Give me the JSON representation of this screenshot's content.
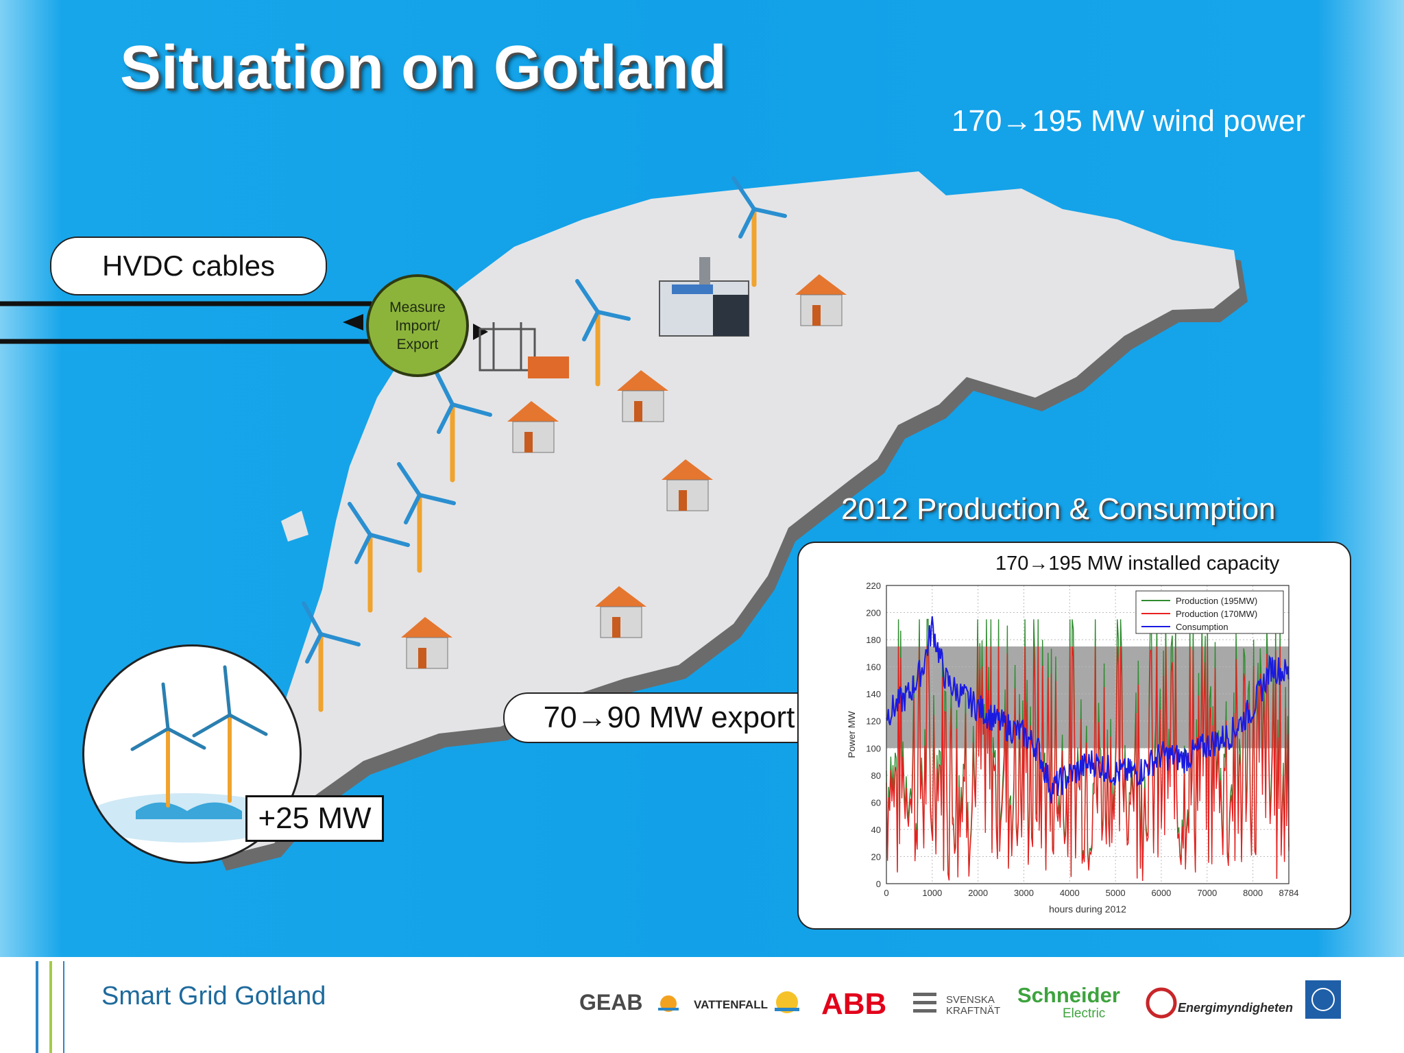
{
  "slide": {
    "title": "Situation on Gotland",
    "wind_power": "170→195 MW wind power",
    "hvdc_label": "HVDC cables",
    "measure_label": [
      "Measure",
      "Import/",
      "Export"
    ],
    "offshore_label": "+25 MW",
    "export_label": "70→90 MW export",
    "chart_heading": "2012 Production & Consumption",
    "chart_subtitle": "170→195 MW installed capacity"
  },
  "colors": {
    "sea": "#12a1e8",
    "land": "#e4e4e6",
    "measure_fill": "#8cb43b",
    "shade_band": "#a8a8a8"
  },
  "chart_data": {
    "type": "line",
    "xlabel": "hours during 2012",
    "ylabel": "Power MW",
    "xlim": [
      0,
      8784
    ],
    "ylim": [
      0,
      220
    ],
    "x_ticks": [
      "0",
      "1000",
      "2000",
      "3000",
      "4000",
      "5000",
      "6000",
      "7000",
      "8000",
      "8784"
    ],
    "y_ticks": [
      "0",
      "20",
      "40",
      "60",
      "80",
      "100",
      "120",
      "140",
      "160",
      "180",
      "200",
      "220"
    ],
    "shaded_band": [
      100,
      175
    ],
    "legend": "top-right",
    "series": [
      {
        "name": "Production (195MW)",
        "color": "#2e8b2e"
      },
      {
        "name": "Production (170MW)",
        "color": "#e82020"
      },
      {
        "name": "Consumption",
        "color": "#1a1ae0",
        "x": [
          0,
          500,
          800,
          1000,
          1300,
          1600,
          2000,
          2500,
          3000,
          3300,
          3600,
          4000,
          4500,
          5000,
          5500,
          6000,
          6500,
          7000,
          7500,
          8000,
          8400,
          8784
        ],
        "values": [
          125,
          140,
          160,
          190,
          150,
          140,
          130,
          118,
          110,
          100,
          70,
          80,
          90,
          82,
          82,
          95,
          92,
          102,
          110,
          130,
          160,
          155
        ]
      }
    ]
  },
  "footer": {
    "title": "Smart Grid Gotland",
    "logos": [
      "GEAB",
      "VATTENFALL",
      "ABB",
      "SVENSKA",
      "KRAFTNÄT",
      "Schneider",
      "Electric",
      "Energimyndigheten"
    ]
  }
}
